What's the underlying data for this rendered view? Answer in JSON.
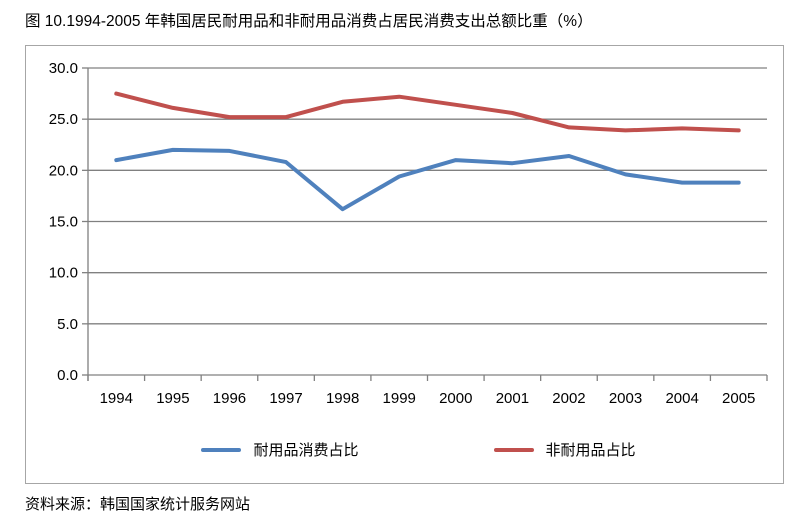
{
  "title": "图 10.1994-2005 年韩国居民耐用品和非耐用品消费占居民消费支出总额比重（%）",
  "source": "资料来源：韩国国家统计服务网站",
  "chart_data": {
    "type": "line",
    "title": "图 10.1994-2005 年韩国居民耐用品和非耐用品消费占居民消费支出总额比重（%）",
    "x": [
      "1994",
      "1995",
      "1996",
      "1997",
      "1998",
      "1999",
      "2000",
      "2001",
      "2002",
      "2003",
      "2004",
      "2005"
    ],
    "series": [
      {
        "name": "耐用品消费占比",
        "color": "#4F81BD",
        "values": [
          21.0,
          22.0,
          21.9,
          20.8,
          16.2,
          19.4,
          21.0,
          20.7,
          21.4,
          19.6,
          18.8,
          18.8
        ]
      },
      {
        "name": "非耐用品占比",
        "color": "#C0504D",
        "values": [
          27.5,
          26.1,
          25.2,
          25.2,
          26.7,
          27.2,
          26.4,
          25.6,
          24.2,
          23.9,
          24.1,
          23.9
        ]
      }
    ],
    "ylim": [
      0,
      30
    ],
    "ytick_step": 5,
    "yticks": [
      "0.0",
      "5.0",
      "10.0",
      "15.0",
      "20.0",
      "25.0",
      "30.0"
    ],
    "xlabel": "",
    "ylabel": "",
    "grid": true,
    "legend_position": "bottom-center-inside",
    "axis_color": "#808080",
    "frame_border_color": "#A6A6A6",
    "text_color": "#000000"
  }
}
